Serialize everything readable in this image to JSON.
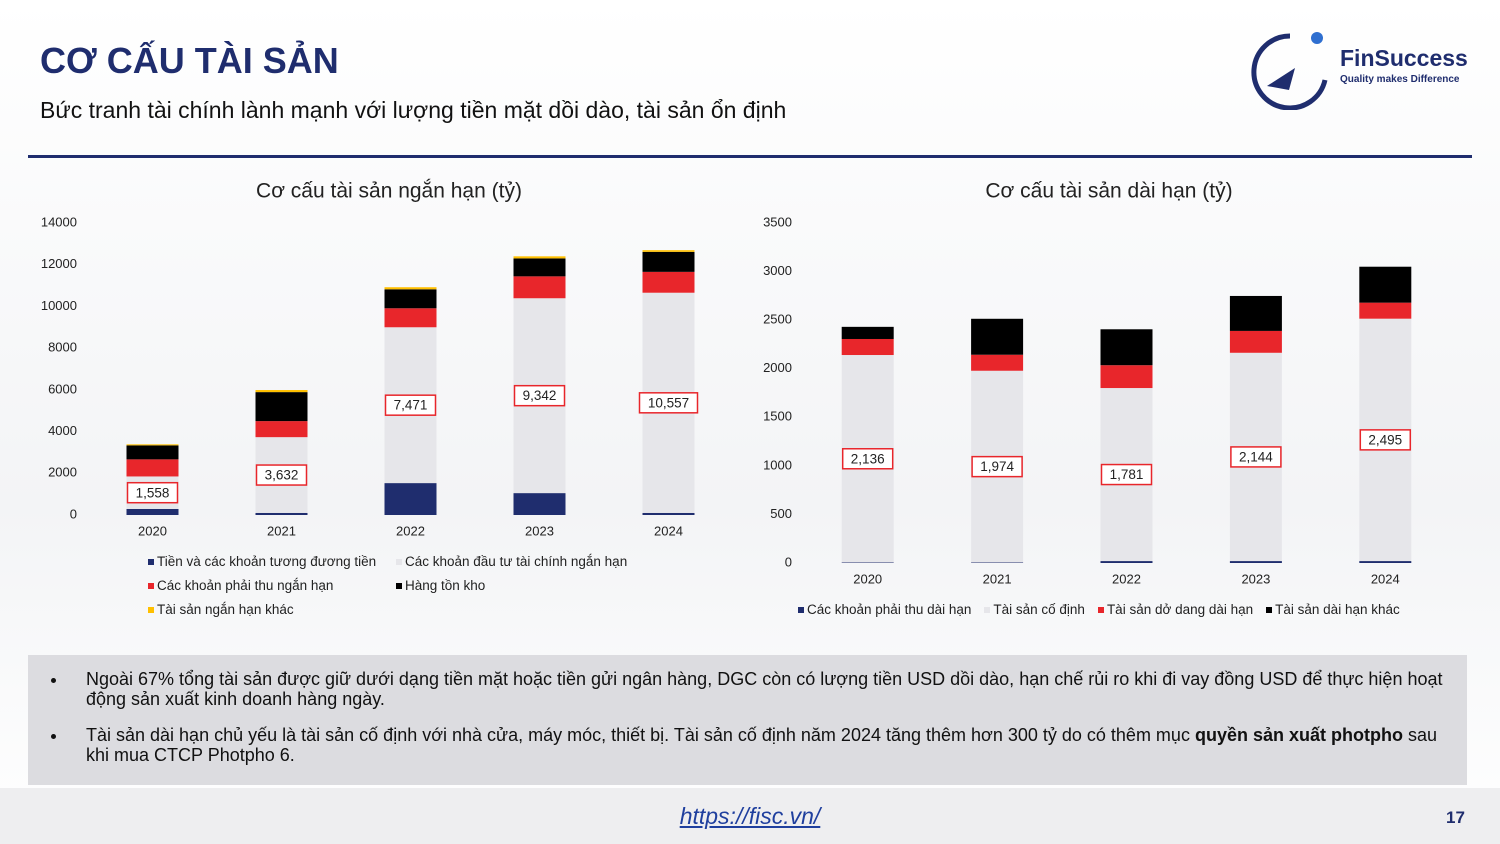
{
  "header": {
    "title": "CƠ CẤU TÀI SẢN",
    "subtitle": "Bức tranh tài chính lành mạnh với lượng tiền mặt dồi dào, tài sản ổn định"
  },
  "logo": {
    "name": "FinSuccess",
    "tagline": "Quality makes Difference"
  },
  "chart_data": [
    {
      "type": "bar",
      "stacked": true,
      "title": "Cơ cấu tài sản ngắn hạn (tỷ)",
      "grid": false,
      "categories": [
        "2020",
        "2021",
        "2022",
        "2023",
        "2024"
      ],
      "ylim": [
        0,
        14000
      ],
      "yticks": [
        0,
        2000,
        4000,
        6000,
        8000,
        10000,
        12000,
        14000
      ],
      "series": [
        {
          "name": "Tiền và các khoản tương đương tiền",
          "color": "#1f2d6e",
          "values": [
            290,
            100,
            1530,
            1050,
            100
          ]
        },
        {
          "name": "Các khoản đầu tư tài chính ngắn hạn",
          "color": "#e6e6ea",
          "values": [
            1558,
            3632,
            7471,
            9342,
            10557
          ],
          "value_labels": [
            "1,558",
            "3,632",
            "7,471",
            "9,342",
            "10,557"
          ]
        },
        {
          "name": "Các khoản phải thu ngắn hạn",
          "color": "#e8262b",
          "values": [
            820,
            770,
            910,
            1050,
            1000
          ]
        },
        {
          "name": "Hàng tồn kho",
          "color": "#000000",
          "values": [
            670,
            1390,
            910,
            860,
            960
          ]
        },
        {
          "name": "Tài sản ngắn hạn khác",
          "color": "#ffc000",
          "values": [
            50,
            100,
            100,
            100,
            80
          ]
        }
      ]
    },
    {
      "type": "bar",
      "stacked": true,
      "title": "Cơ cấu tài sản dài hạn (tỷ)",
      "grid": false,
      "categories": [
        "2020",
        "2021",
        "2022",
        "2023",
        "2024"
      ],
      "ylim": [
        0,
        3500
      ],
      "yticks": [
        0,
        500,
        1000,
        1500,
        2000,
        2500,
        3000,
        3500
      ],
      "series": [
        {
          "name": "Các khoản phải thu dài hạn",
          "color": "#1f2d6e",
          "values": [
            5,
            5,
            20,
            20,
            20
          ]
        },
        {
          "name": "Tài sản cố định",
          "color": "#e6e6ea",
          "values": [
            2136,
            1974,
            1781,
            2144,
            2495
          ],
          "value_labels": [
            "2,136",
            "1,974",
            "1,781",
            "2,144",
            "2,495"
          ]
        },
        {
          "name": "Tài sản dở dang dài hạn",
          "color": "#e8262b",
          "values": [
            165,
            165,
            235,
            225,
            165
          ]
        },
        {
          "name": "Tài sản dài hạn khác",
          "color": "#000000",
          "values": [
            125,
            370,
            370,
            360,
            370
          ]
        }
      ]
    }
  ],
  "bullets": [
    [
      {
        "text": "Ngoài 67% tổng tài sản được giữ dưới dạng tiền mặt hoặc tiền gửi ngân hàng, DGC còn có lượng tiền USD dồi dào, hạn chế rủi ro khi đi vay đồng USD để thực hiện hoạt động sản xuất kinh doanh hàng ngày."
      }
    ],
    [
      {
        "text": "Tài sản dài hạn chủ yếu là tài sản cố định với nhà cửa, máy móc, thiết bị. Tài sản cố định năm 2024 tăng thêm hơn 300 tỷ do có thêm mục "
      },
      {
        "text": "quyền sản xuất photpho",
        "bold": true
      },
      {
        "text": " sau khi  mua CTCP Photpho 6."
      }
    ]
  ],
  "footer": {
    "link": "https://fisc.vn/",
    "page": "17"
  }
}
